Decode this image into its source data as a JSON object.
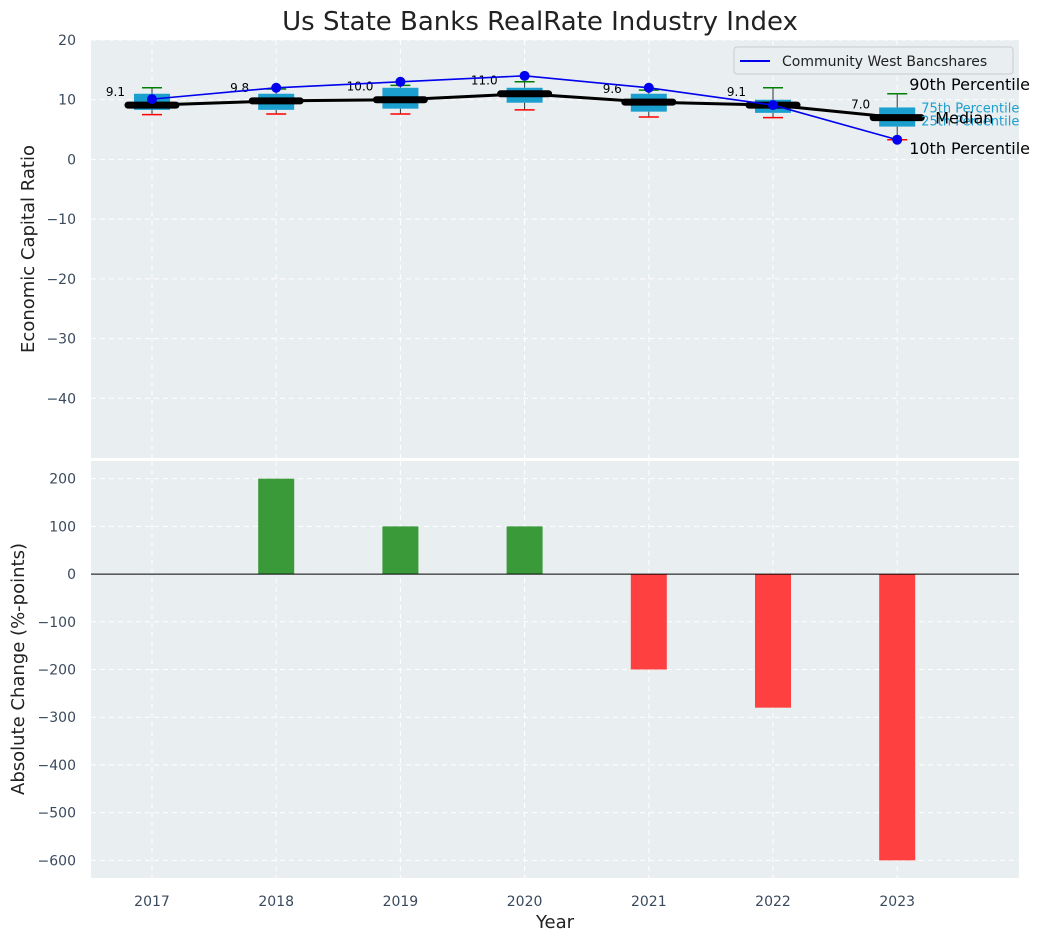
{
  "chart_data": [
    {
      "type": "box",
      "title": "Us State Banks RealRate Industry Index",
      "ylabel": "Economic Capital Ratio",
      "ylim": [
        -50,
        20
      ],
      "yticks": [
        20,
        10,
        0,
        -10,
        -20,
        -30,
        -40
      ],
      "categories": [
        "2017",
        "2018",
        "2019",
        "2020",
        "2021",
        "2022",
        "2023"
      ],
      "boxes": [
        {
          "year": "2017",
          "p10": 7.5,
          "q1": 8.3,
          "median": 9.1,
          "q3": 11.0,
          "p90": 12.0,
          "median_label": "9.1"
        },
        {
          "year": "2018",
          "p10": 7.6,
          "q1": 8.3,
          "median": 9.8,
          "q3": 11.0,
          "p90": 11.8,
          "median_label": "9.8"
        },
        {
          "year": "2019",
          "p10": 7.6,
          "q1": 8.5,
          "median": 10.0,
          "q3": 12.0,
          "p90": 12.4,
          "median_label": "10.0"
        },
        {
          "year": "2020",
          "p10": 8.3,
          "q1": 9.5,
          "median": 11.0,
          "q3": 12.0,
          "p90": 13.0,
          "median_label": "11.0"
        },
        {
          "year": "2021",
          "p10": 7.1,
          "q1": 8.0,
          "median": 9.6,
          "q3": 11.0,
          "p90": 11.6,
          "median_label": "9.6"
        },
        {
          "year": "2022",
          "p10": 7.0,
          "q1": 7.8,
          "median": 9.1,
          "q3": 10.0,
          "p90": 12.0,
          "median_label": "9.1"
        },
        {
          "year": "2023",
          "p10": 3.3,
          "q1": 5.5,
          "median": 7.0,
          "q3": 8.7,
          "p90": 11.0,
          "median_label": "7.0"
        }
      ],
      "series": [
        {
          "name": "Community West Bancshares",
          "values": [
            10.1,
            12.0,
            13.0,
            14.0,
            12.0,
            9.1,
            3.3
          ]
        }
      ],
      "annotations": {
        "p90": "90th Percentile",
        "q3": "75th Percentile",
        "median": "Median",
        "q1": "25th Percentile",
        "p10": "10th Percentile"
      },
      "legend": "top-right"
    },
    {
      "type": "bar",
      "ylabel": "Absolute Change (%-points)",
      "xlabel": "Year",
      "ylim": [
        -637,
        237
      ],
      "yticks": [
        200,
        100,
        0,
        -100,
        -200,
        -300,
        -400,
        -500,
        -600
      ],
      "categories": [
        "2017",
        "2018",
        "2019",
        "2020",
        "2021",
        "2022",
        "2023"
      ],
      "values": [
        0,
        200,
        100,
        100,
        -200,
        -280,
        -600
      ],
      "positive_color": "#3a9a3a",
      "negative_color": "#ff4040"
    }
  ],
  "colors": {
    "plot_bg": "#e9eef0",
    "grid": "#ffffff",
    "box_fill": "#1a9fcf",
    "whisker_high": "#008000",
    "whisker_low": "#ff0000",
    "median_line": "#000000",
    "series_line": "#0000ee"
  }
}
